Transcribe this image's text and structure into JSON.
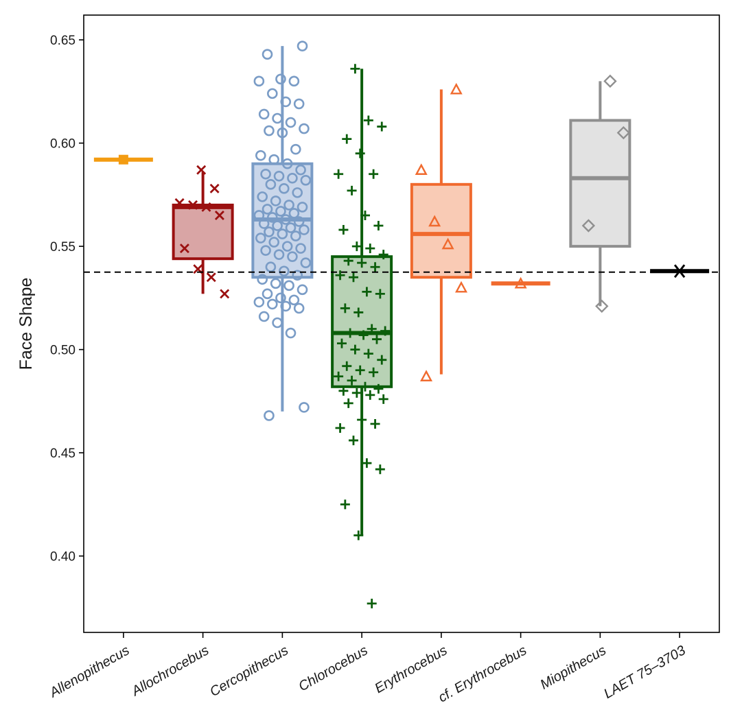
{
  "chart_data": {
    "type": "box",
    "title": "",
    "xlabel": "",
    "ylabel": "Face Shape",
    "ylim": [
      0.363,
      0.662
    ],
    "yticks": [
      "0.40",
      "0.45",
      "0.50",
      "0.55",
      "0.60",
      "0.65"
    ],
    "grid": false,
    "legend": "none",
    "reference_line": {
      "y": 0.5375,
      "style": "dashed",
      "color": "#000000"
    },
    "categories": [
      "Allenopithecus",
      "Allochrocebus",
      "Cercopithecus",
      "Chlorocebus",
      "Erythrocebus",
      "cf. Erythrocebus",
      "Miopithecus",
      "LAET 75–3703"
    ],
    "groups": [
      {
        "name": "Allenopithecus",
        "color": "#F39C12",
        "fill": "#F6B65A",
        "marker": "square",
        "box": {
          "q1": 0.592,
          "median": 0.592,
          "q3": 0.592,
          "whisker_low": 0.592,
          "whisker_high": 0.592
        },
        "points": [
          0.592
        ]
      },
      {
        "name": "Allochrocebus",
        "color": "#9B1010",
        "fill": "#D9A5A5",
        "marker": "x",
        "box": {
          "q1": 0.544,
          "median": 0.569,
          "q3": 0.57,
          "whisker_low": 0.527,
          "whisker_high": 0.586
        },
        "points": [
          0.587,
          0.578,
          0.571,
          0.57,
          0.569,
          0.565,
          0.549,
          0.539,
          0.535,
          0.527
        ]
      },
      {
        "name": "Cercopithecus",
        "color": "#7A9CC6",
        "fill": "#C9D6EA",
        "marker": "circle",
        "box": {
          "q1": 0.535,
          "median": 0.563,
          "q3": 0.59,
          "whisker_low": 0.47,
          "whisker_high": 0.647
        },
        "points": [
          0.647,
          0.643,
          0.631,
          0.63,
          0.63,
          0.624,
          0.62,
          0.619,
          0.614,
          0.612,
          0.61,
          0.607,
          0.606,
          0.605,
          0.597,
          0.594,
          0.592,
          0.59,
          0.587,
          0.585,
          0.584,
          0.583,
          0.582,
          0.58,
          0.578,
          0.576,
          0.574,
          0.572,
          0.57,
          0.569,
          0.568,
          0.567,
          0.566,
          0.565,
          0.564,
          0.563,
          0.562,
          0.561,
          0.56,
          0.559,
          0.558,
          0.557,
          0.556,
          0.555,
          0.554,
          0.552,
          0.55,
          0.549,
          0.548,
          0.546,
          0.545,
          0.542,
          0.54,
          0.538,
          0.536,
          0.534,
          0.532,
          0.531,
          0.529,
          0.527,
          0.525,
          0.524,
          0.523,
          0.522,
          0.521,
          0.52,
          0.516,
          0.513,
          0.508,
          0.472,
          0.468
        ]
      },
      {
        "name": "Chlorocebus",
        "color": "#0B5E0B",
        "fill": "#B8D2B5",
        "marker": "plus",
        "box": {
          "q1": 0.482,
          "median": 0.508,
          "q3": 0.545,
          "whisker_low": 0.41,
          "whisker_high": 0.636
        },
        "points": [
          0.636,
          0.611,
          0.608,
          0.602,
          0.595,
          0.585,
          0.585,
          0.577,
          0.565,
          0.56,
          0.558,
          0.55,
          0.549,
          0.546,
          0.543,
          0.542,
          0.54,
          0.536,
          0.535,
          0.528,
          0.527,
          0.52,
          0.518,
          0.51,
          0.509,
          0.508,
          0.507,
          0.505,
          0.503,
          0.5,
          0.498,
          0.495,
          0.492,
          0.49,
          0.489,
          0.487,
          0.485,
          0.482,
          0.481,
          0.48,
          0.479,
          0.478,
          0.476,
          0.474,
          0.466,
          0.464,
          0.462,
          0.456,
          0.445,
          0.442,
          0.425,
          0.41,
          0.377
        ]
      },
      {
        "name": "Erythrocebus",
        "color": "#F06A2E",
        "fill": "#F9CBB5",
        "marker": "triangle",
        "box": {
          "q1": 0.535,
          "median": 0.556,
          "q3": 0.58,
          "whisker_low": 0.488,
          "whisker_high": 0.626
        },
        "points": [
          0.626,
          0.587,
          0.562,
          0.551,
          0.53,
          0.487
        ]
      },
      {
        "name": "cf. Erythrocebus",
        "color": "#F06A2E",
        "fill": "#F9CBB5",
        "marker": "triangle",
        "box": {
          "q1": 0.532,
          "median": 0.532,
          "q3": 0.532,
          "whisker_low": 0.532,
          "whisker_high": 0.532
        },
        "points": [
          0.532
        ]
      },
      {
        "name": "Miopithecus",
        "color": "#8F8F8F",
        "fill": "#E2E2E2",
        "marker": "diamond",
        "box": {
          "q1": 0.55,
          "median": 0.583,
          "q3": 0.611,
          "whisker_low": 0.521,
          "whisker_high": 0.63
        },
        "points": [
          0.63,
          0.605,
          0.56,
          0.521
        ]
      },
      {
        "name": "LAET 75–3703",
        "color": "#000000",
        "fill": "#000000",
        "marker": "asterisk",
        "box": {
          "q1": 0.538,
          "median": 0.538,
          "q3": 0.538,
          "whisker_low": 0.538,
          "whisker_high": 0.538
        },
        "points": [
          0.538
        ]
      }
    ]
  }
}
